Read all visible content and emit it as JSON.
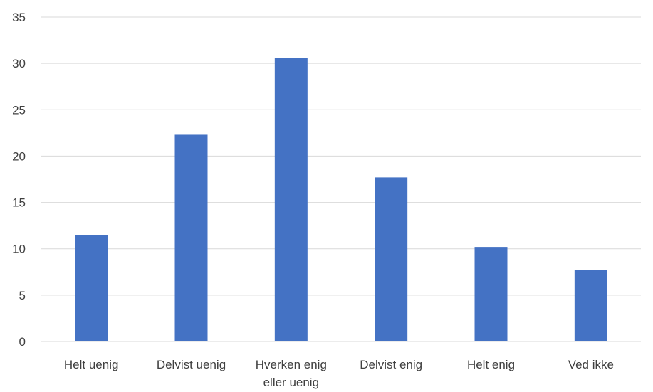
{
  "chart_data": {
    "type": "bar",
    "categories": [
      [
        "Helt uenig"
      ],
      [
        "Delvist uenig"
      ],
      [
        "Hverken enig",
        "eller uenig"
      ],
      [
        "Delvist enig"
      ],
      [
        "Helt enig"
      ],
      [
        "Ved ikke"
      ]
    ],
    "values": [
      11.5,
      22.3,
      30.6,
      17.7,
      10.2,
      7.7
    ],
    "yticks": [
      "0",
      "5",
      "10",
      "15",
      "20",
      "25",
      "30",
      "35"
    ],
    "ylim": [
      0,
      35
    ],
    "grid": true,
    "legend": "none",
    "bar_color": "#4472c4"
  }
}
